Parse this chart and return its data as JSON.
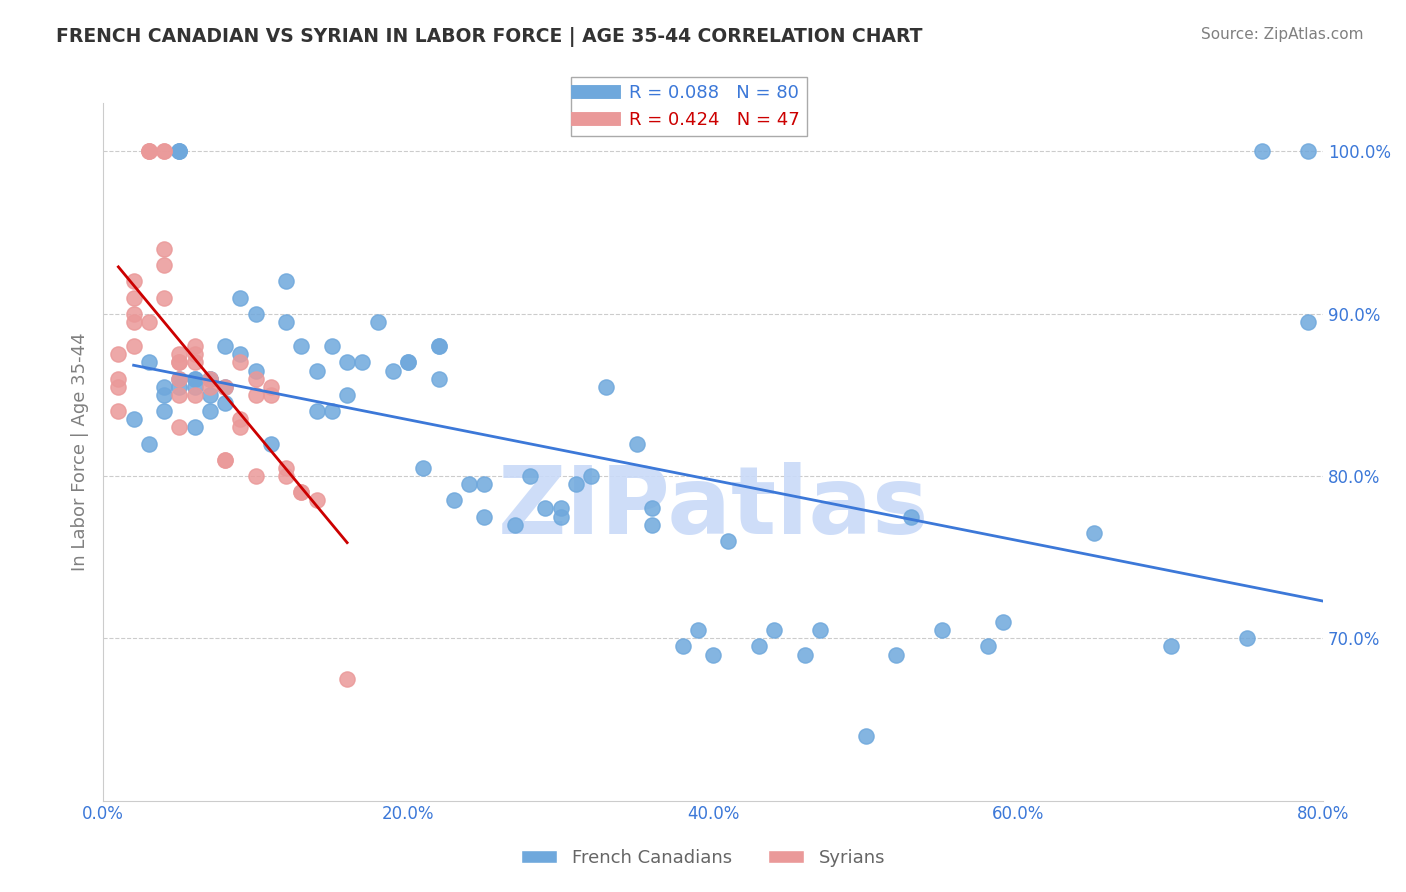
{
  "title": "FRENCH CANADIAN VS SYRIAN IN LABOR FORCE | AGE 35-44 CORRELATION CHART",
  "source": "Source: ZipAtlas.com",
  "xlabel": "",
  "ylabel": "In Labor Force | Age 35-44",
  "xlim": [
    0.0,
    0.8
  ],
  "ylim": [
    0.6,
    1.03
  ],
  "xticks": [
    0.0,
    0.2,
    0.4,
    0.6,
    0.8
  ],
  "yticks": [
    0.7,
    0.8,
    0.9,
    1.0
  ],
  "xticklabels": [
    "0.0%",
    "20.0%",
    "40.0%",
    "60.0%",
    "80.0%"
  ],
  "yticklabels": [
    "70.0%",
    "80.0%",
    "90.0%",
    "100.0%"
  ],
  "blue_R": 0.088,
  "blue_N": 80,
  "pink_R": 0.424,
  "pink_N": 47,
  "blue_color": "#6fa8dc",
  "pink_color": "#ea9999",
  "blue_line_color": "#3c78d8",
  "pink_line_color": "#cc0000",
  "legend_label_blue": "French Canadians",
  "legend_label_pink": "Syrians",
  "watermark": "ZIPatlas",
  "watermark_color": "#c9daf8",
  "blue_scatter_x": [
    0.02,
    0.03,
    0.03,
    0.04,
    0.04,
    0.04,
    0.05,
    0.05,
    0.05,
    0.05,
    0.05,
    0.06,
    0.06,
    0.06,
    0.06,
    0.07,
    0.07,
    0.07,
    0.07,
    0.08,
    0.08,
    0.08,
    0.09,
    0.09,
    0.1,
    0.1,
    0.11,
    0.12,
    0.12,
    0.13,
    0.14,
    0.14,
    0.15,
    0.15,
    0.16,
    0.16,
    0.17,
    0.18,
    0.19,
    0.2,
    0.2,
    0.21,
    0.22,
    0.22,
    0.22,
    0.23,
    0.24,
    0.25,
    0.25,
    0.27,
    0.28,
    0.29,
    0.3,
    0.3,
    0.31,
    0.32,
    0.33,
    0.35,
    0.36,
    0.36,
    0.38,
    0.39,
    0.4,
    0.41,
    0.43,
    0.44,
    0.46,
    0.47,
    0.5,
    0.52,
    0.53,
    0.55,
    0.58,
    0.59,
    0.65,
    0.7,
    0.75,
    0.76,
    0.79,
    0.79
  ],
  "blue_scatter_y": [
    0.835,
    0.82,
    0.87,
    0.84,
    0.85,
    0.855,
    1.0,
    1.0,
    1.0,
    0.86,
    0.855,
    0.86,
    0.83,
    0.86,
    0.855,
    0.86,
    0.84,
    0.85,
    0.86,
    0.88,
    0.855,
    0.845,
    0.91,
    0.875,
    0.9,
    0.865,
    0.82,
    0.92,
    0.895,
    0.88,
    0.865,
    0.84,
    0.88,
    0.84,
    0.87,
    0.85,
    0.87,
    0.895,
    0.865,
    0.87,
    0.87,
    0.805,
    0.88,
    0.86,
    0.88,
    0.785,
    0.795,
    0.795,
    0.775,
    0.77,
    0.8,
    0.78,
    0.775,
    0.78,
    0.795,
    0.8,
    0.855,
    0.82,
    0.77,
    0.78,
    0.695,
    0.705,
    0.69,
    0.76,
    0.695,
    0.705,
    0.69,
    0.705,
    0.64,
    0.69,
    0.775,
    0.705,
    0.695,
    0.71,
    0.765,
    0.695,
    0.7,
    1.0,
    0.895,
    1.0
  ],
  "pink_scatter_x": [
    0.01,
    0.01,
    0.01,
    0.01,
    0.02,
    0.02,
    0.02,
    0.02,
    0.02,
    0.03,
    0.03,
    0.03,
    0.03,
    0.04,
    0.04,
    0.04,
    0.04,
    0.04,
    0.05,
    0.05,
    0.05,
    0.05,
    0.05,
    0.05,
    0.06,
    0.06,
    0.06,
    0.06,
    0.07,
    0.07,
    0.08,
    0.08,
    0.08,
    0.09,
    0.09,
    0.09,
    0.1,
    0.1,
    0.1,
    0.11,
    0.11,
    0.12,
    0.12,
    0.13,
    0.13,
    0.14,
    0.16
  ],
  "pink_scatter_y": [
    0.84,
    0.86,
    0.875,
    0.855,
    0.92,
    0.91,
    0.88,
    0.895,
    0.9,
    1.0,
    1.0,
    1.0,
    0.895,
    1.0,
    1.0,
    0.94,
    0.93,
    0.91,
    0.87,
    0.875,
    0.87,
    0.86,
    0.85,
    0.83,
    0.88,
    0.875,
    0.87,
    0.85,
    0.86,
    0.855,
    0.81,
    0.81,
    0.855,
    0.835,
    0.83,
    0.87,
    0.86,
    0.85,
    0.8,
    0.855,
    0.85,
    0.805,
    0.8,
    0.79,
    0.79,
    0.785,
    0.675
  ]
}
